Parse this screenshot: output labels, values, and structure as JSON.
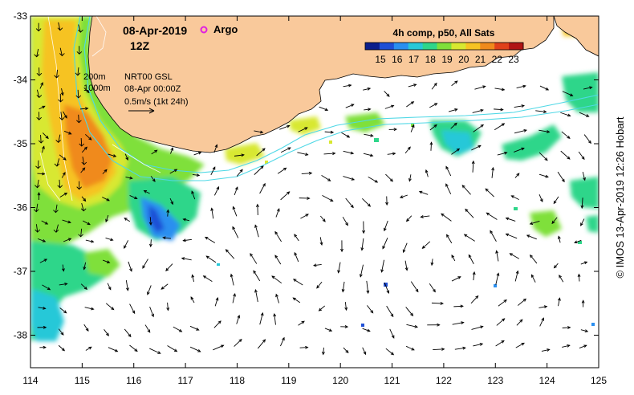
{
  "title": {
    "date": "08-Apr-2019",
    "hour": "12Z",
    "argo_label": "Argo"
  },
  "colorbar": {
    "title": "4h comp, p50, All Sats",
    "ticks": [
      "15",
      "16",
      "17",
      "18",
      "19",
      "20",
      "21",
      "22",
      "23"
    ],
    "colors": [
      "#0b1e8c",
      "#1f4fd6",
      "#2a8ff0",
      "#27c8d8",
      "#2fd68a",
      "#7fe03a",
      "#d8e830",
      "#f6c322",
      "#f08a1c",
      "#e0401a",
      "#b01414"
    ]
  },
  "map_legend": {
    "isobath_200": "200m",
    "isobath_1000": "1000m",
    "product": "NRT00 GSL",
    "valid_time": "08-Apr 00:00Z",
    "arrow_scale": "0.5m/s (1kt 24h)"
  },
  "axes": {
    "x_ticks": [
      "114",
      "115",
      "116",
      "117",
      "118",
      "119",
      "120",
      "121",
      "122",
      "123",
      "124",
      "125"
    ],
    "y_ticks": [
      "-33",
      "-34",
      "-35",
      "-36",
      "-37",
      "-38"
    ]
  },
  "credit": "© IMOS 13-Apr-2019 12:26 Hobart",
  "colors": {
    "land": "#f9c99b",
    "coast_outline": "#000000",
    "isobath": "#4fd8e6",
    "argo_marker": "#e020e0",
    "current_arrows": "#000000"
  }
}
